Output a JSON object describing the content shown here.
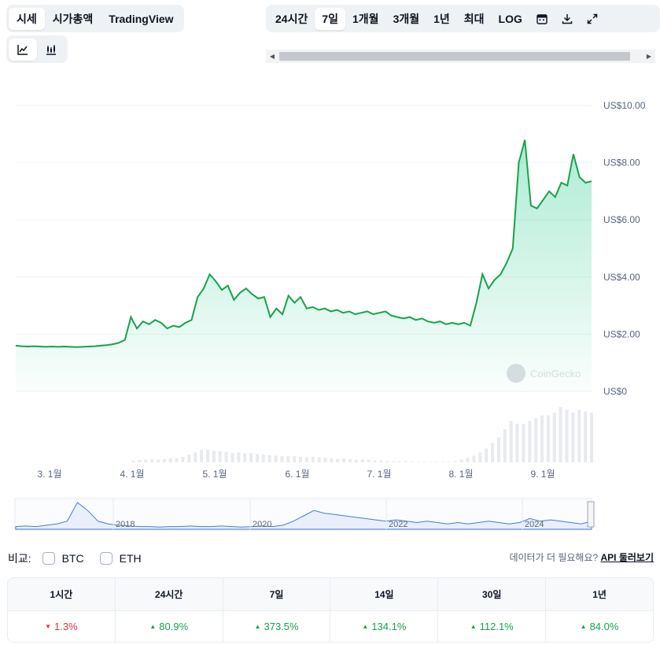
{
  "top_tabs": [
    {
      "label": "시세",
      "active": true
    },
    {
      "label": "시가총액",
      "active": false
    },
    {
      "label": "TradingView",
      "active": false
    }
  ],
  "chart_type_tabs": [
    {
      "icon": "line-chart-icon",
      "active": true
    },
    {
      "icon": "candlestick-chart-icon",
      "active": false
    }
  ],
  "range_tabs": [
    {
      "label": "24시간",
      "active": false
    },
    {
      "label": "7일",
      "active": true
    },
    {
      "label": "1개월",
      "active": false
    },
    {
      "label": "3개월",
      "active": false
    },
    {
      "label": "1년",
      "active": false
    },
    {
      "label": "최대",
      "active": false
    },
    {
      "label": "LOG",
      "active": false
    }
  ],
  "range_icons": [
    "calendar-icon",
    "download-icon",
    "expand-icon"
  ],
  "watermark": "CoinGecko",
  "chart_data": {
    "type": "line",
    "title": "",
    "y_ticks": [
      "US$10.00",
      "US$8.00",
      "US$6.00",
      "US$4.00",
      "US$2.00",
      "US$0"
    ],
    "ylim": [
      0,
      10
    ],
    "x_ticks": [
      "3. 1월",
      "4. 1월",
      "5. 1월",
      "6. 1월",
      "7. 1월",
      "8. 1월",
      "9. 1월"
    ],
    "price_series": [
      1.6,
      1.58,
      1.57,
      1.58,
      1.57,
      1.56,
      1.57,
      1.56,
      1.57,
      1.56,
      1.55,
      1.56,
      1.57,
      1.58,
      1.6,
      1.62,
      1.65,
      1.7,
      1.8,
      2.6,
      2.2,
      2.45,
      2.35,
      2.5,
      2.4,
      2.2,
      2.3,
      2.25,
      2.4,
      2.5,
      3.3,
      3.6,
      4.1,
      3.85,
      3.55,
      3.7,
      3.2,
      3.45,
      3.6,
      3.4,
      3.25,
      3.3,
      2.6,
      2.9,
      2.7,
      3.35,
      3.1,
      3.3,
      2.9,
      2.95,
      2.85,
      2.9,
      2.8,
      2.85,
      2.75,
      2.8,
      2.7,
      2.75,
      2.8,
      2.7,
      2.75,
      2.8,
      2.65,
      2.6,
      2.55,
      2.6,
      2.5,
      2.55,
      2.45,
      2.4,
      2.45,
      2.35,
      2.4,
      2.35,
      2.4,
      2.3,
      3.1,
      4.1,
      3.6,
      3.9,
      4.1,
      4.5,
      5.0,
      8.0,
      8.8,
      6.5,
      6.4,
      6.7,
      7.0,
      6.8,
      7.3,
      7.2,
      8.3,
      7.5,
      7.3,
      7.35
    ],
    "volume_series": [
      0,
      0,
      0,
      0,
      0,
      0,
      0,
      0,
      0,
      0,
      0,
      0,
      0,
      0,
      0,
      0,
      0,
      0,
      0,
      0.03,
      0.04,
      0.05,
      0.06,
      0.05,
      0.06,
      0.07,
      0.08,
      0.1,
      0.14,
      0.18,
      0.22,
      0.23,
      0.21,
      0.2,
      0.19,
      0.17,
      0.18,
      0.16,
      0.17,
      0.15,
      0.14,
      0.13,
      0.12,
      0.11,
      0.12,
      0.11,
      0.1,
      0.09,
      0.1,
      0.09,
      0.08,
      0.07,
      0.06,
      0.07,
      0.06,
      0.05,
      0.05,
      0.04,
      0.03,
      0.03,
      0.02,
      0.02,
      0.02,
      0.02,
      0.01,
      0.01,
      0.01,
      0.01,
      0.01,
      0.01,
      0.01,
      0.02,
      0.05,
      0.08,
      0.12,
      0.18,
      0.25,
      0.35,
      0.45,
      0.6,
      0.75,
      0.7,
      0.7,
      0.75,
      0.8,
      0.85,
      0.85,
      0.9,
      1.0,
      0.95,
      0.9,
      0.95,
      0.92,
      0.9
    ],
    "navigator_ticks": [
      "2018",
      "2020",
      "2022",
      "2024"
    ]
  },
  "compare": {
    "label": "비교:",
    "options": [
      "BTC",
      "ETH"
    ]
  },
  "data_link": {
    "text": "데이터가 더 필요해요?",
    "link": "API 둘러보기"
  },
  "performance": [
    {
      "period": "1시간",
      "value": "1.3%",
      "direction": "down"
    },
    {
      "period": "24시간",
      "value": "80.9%",
      "direction": "up"
    },
    {
      "period": "7일",
      "value": "373.5%",
      "direction": "up"
    },
    {
      "period": "14일",
      "value": "134.1%",
      "direction": "up"
    },
    {
      "period": "30일",
      "value": "112.1%",
      "direction": "up"
    },
    {
      "period": "1년",
      "value": "84.0%",
      "direction": "up"
    }
  ]
}
